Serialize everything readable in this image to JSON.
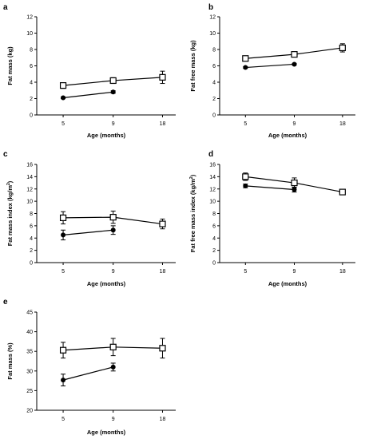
{
  "figure": {
    "title": ""
  },
  "chart_data": [
    {
      "panel": "a",
      "type": "line",
      "x_categories": [
        "5",
        "9",
        "18"
      ],
      "xlabel": "Age (months)",
      "ylabel": "Fat mass (kg)",
      "ylim": [
        0,
        12
      ],
      "yticks": [
        0,
        2,
        4,
        6,
        8,
        10,
        12
      ],
      "series": [
        {
          "marker": "open-square",
          "values": [
            3.6,
            4.2,
            4.6
          ],
          "errors": [
            0.35,
            0.35,
            0.75
          ]
        },
        {
          "marker": "filled-circle",
          "values": [
            2.1,
            2.8,
            null
          ],
          "errors": [
            0.1,
            0.15,
            null
          ]
        }
      ]
    },
    {
      "panel": "b",
      "type": "line",
      "x_categories": [
        "5",
        "9",
        "18"
      ],
      "xlabel": "Age (months)",
      "ylabel": "Fat free mass (kg)",
      "ylim": [
        0,
        12
      ],
      "yticks": [
        0,
        2,
        4,
        6,
        8,
        10,
        12
      ],
      "series": [
        {
          "marker": "open-square",
          "values": [
            6.9,
            7.4,
            8.2
          ],
          "errors": [
            0.2,
            0.3,
            0.5
          ]
        },
        {
          "marker": "filled-circle",
          "values": [
            5.8,
            6.2,
            null
          ],
          "errors": [
            0.1,
            0.1,
            null
          ]
        }
      ]
    },
    {
      "panel": "c",
      "type": "line",
      "x_categories": [
        "5",
        "9",
        "18"
      ],
      "xlabel": "Age (months)",
      "ylabel": "Fat mass index (kg/m",
      "ylabel_sup": "2",
      "ylabel_end": ")",
      "ylim": [
        0,
        16
      ],
      "yticks": [
        0,
        2,
        4,
        6,
        8,
        10,
        12,
        14,
        16
      ],
      "series": [
        {
          "marker": "open-square",
          "values": [
            7.3,
            7.4,
            6.3
          ],
          "errors": [
            1.0,
            1.0,
            0.8
          ]
        },
        {
          "marker": "filled-circle",
          "values": [
            4.5,
            5.3,
            null
          ],
          "errors": [
            0.8,
            0.7,
            null
          ]
        }
      ]
    },
    {
      "panel": "d",
      "type": "line",
      "x_categories": [
        "5",
        "9",
        "18"
      ],
      "xlabel": "Age (months)",
      "ylabel": "Fat free mass index (kg/m",
      "ylabel_sup": "2",
      "ylabel_end": ")",
      "ylim": [
        0,
        16
      ],
      "yticks": [
        0,
        2,
        4,
        6,
        8,
        10,
        12,
        14,
        16
      ],
      "series": [
        {
          "marker": "open-square",
          "values": [
            14.0,
            13.0,
            11.5
          ],
          "errors": [
            0.6,
            0.8,
            0.2
          ]
        },
        {
          "marker": "filled-circle",
          "values": [
            12.5,
            11.9,
            null
          ],
          "errors": [
            0.3,
            0.4,
            null
          ]
        }
      ]
    },
    {
      "panel": "e",
      "type": "line",
      "x_categories": [
        "5",
        "9",
        "18"
      ],
      "xlabel": "Age (months)",
      "ylabel": "Fat mass (%)",
      "ylim": [
        20,
        45
      ],
      "yticks": [
        20,
        25,
        30,
        35,
        40,
        45
      ],
      "series": [
        {
          "marker": "open-square",
          "values": [
            35.3,
            36.1,
            35.8
          ],
          "errors": [
            2.0,
            2.2,
            2.5
          ]
        },
        {
          "marker": "filled-circle",
          "values": [
            27.7,
            31.0,
            null
          ],
          "errors": [
            1.5,
            1.0,
            null
          ]
        }
      ]
    }
  ]
}
